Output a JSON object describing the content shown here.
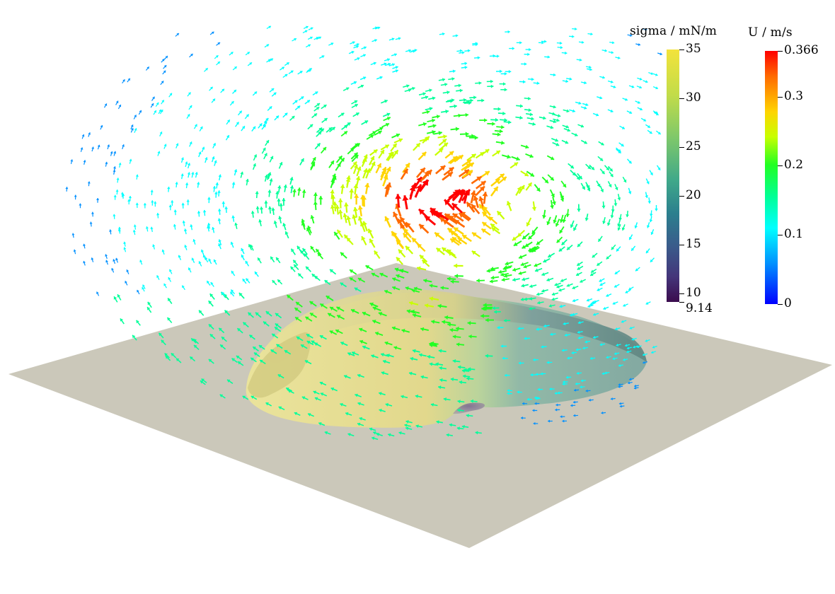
{
  "sigma_legend": {
    "title": "sigma / mN/m",
    "min": 9.14,
    "max": 35,
    "ticks": [
      {
        "value": 35,
        "label": "35"
      },
      {
        "value": 30,
        "label": "30"
      },
      {
        "value": 25,
        "label": "25"
      },
      {
        "value": 20,
        "label": "20"
      },
      {
        "value": 15,
        "label": "15"
      },
      {
        "value": 10,
        "label": "10"
      },
      {
        "value": 9.14,
        "label": "9.14"
      }
    ],
    "colors": [
      "#3b0c4e",
      "#44357a",
      "#3a5b8b",
      "#2b7f8e",
      "#3fa88a",
      "#7ec86a",
      "#c2dc49",
      "#f3e33b"
    ]
  },
  "u_legend": {
    "title": "U / m/s",
    "min": 0,
    "max": 0.366,
    "ticks": [
      {
        "value": 0.366,
        "label": "0.366"
      },
      {
        "value": 0.3,
        "label": "0.3"
      },
      {
        "value": 0.2,
        "label": "0.2"
      },
      {
        "value": 0.1,
        "label": "0.1"
      },
      {
        "value": 0,
        "label": "0"
      }
    ],
    "colors": [
      "#0000ff",
      "#0090ff",
      "#00ffff",
      "#00ff9a",
      "#22ff22",
      "#c8ff00",
      "#ffd400",
      "#ff6a00",
      "#ff0000"
    ]
  },
  "scene": {
    "background_color": "#ffffff",
    "plane_color": "#cbc8ba",
    "droplet_yellow": "#ddd68c",
    "droplet_teal": "#86aaa2"
  }
}
